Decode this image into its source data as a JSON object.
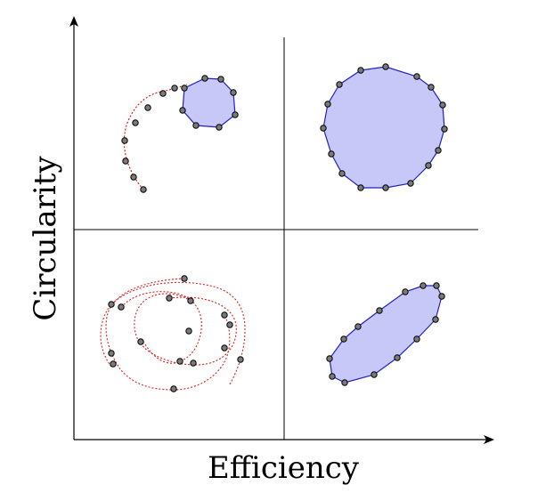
{
  "axes": {
    "x_label": "Efficiency",
    "y_label": "Circularity"
  },
  "colors": {
    "fill": "#c8c8f8",
    "outline": "#2020c0",
    "trajectory": "#d82020",
    "marker": "#7a7a7a",
    "axis": "#000000"
  },
  "quadrants": [
    {
      "position": "top-left",
      "description_shape": "spiral-into-small-circle"
    },
    {
      "position": "top-right",
      "description_shape": "large-circle"
    },
    {
      "position": "bottom-left",
      "description_shape": "tangled-loops"
    },
    {
      "position": "bottom-right",
      "description_shape": "ellipse"
    }
  ]
}
